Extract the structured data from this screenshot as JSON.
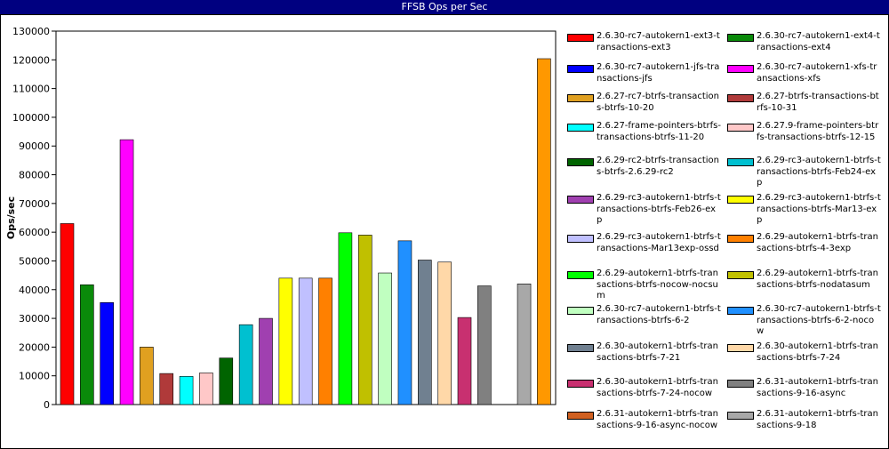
{
  "title": "FFSB Ops per Sec",
  "chart_data": {
    "type": "bar",
    "title": "FFSB Ops per Sec",
    "ylabel": "Ops/sec",
    "xlabel": "",
    "ylim": [
      0,
      130000
    ],
    "yticks": [
      "0",
      "10000",
      "20000",
      "30000",
      "40000",
      "50000",
      "60000",
      "70000",
      "80000",
      "90000",
      "100000",
      "110000",
      "120000",
      "130000"
    ],
    "grid": false,
    "legend_position": "right",
    "series": [
      {
        "name": "2.6.30-rc7-autokern1-ext3-transactions-ext3",
        "value": 63000,
        "color": "#ff0000"
      },
      {
        "name": "2.6.30-rc7-autokern1-ext4-transactions-ext4",
        "value": 41700,
        "color": "#0a8a0a"
      },
      {
        "name": "2.6.30-rc7-autokern1-jfs-transactions-jfs",
        "value": 35500,
        "color": "#0000ff"
      },
      {
        "name": "2.6.30-rc7-autokern1-xfs-transactions-xfs",
        "value": 92200,
        "color": "#ff00ff"
      },
      {
        "name": "2.6.27-rc7-btrfs-transactions-btrfs-10-20",
        "value": 20000,
        "color": "#e0a020"
      },
      {
        "name": "2.6.27-btrfs-transactions-btrfs-10-31",
        "value": 10800,
        "color": "#b03a3a"
      },
      {
        "name": "2.6.27-frame-pointers-btrfs-transactions-btrfs-11-20",
        "value": 9800,
        "color": "#00ffff"
      },
      {
        "name": "2.6.27.9-frame-pointers-btrfs-transactions-btrfs-12-15",
        "value": 11000,
        "color": "#ffc8c8"
      },
      {
        "name": "2.6.29-rc2-btrfs-transactions-btrfs-2.6.29-rc2",
        "value": 16200,
        "color": "#006400"
      },
      {
        "name": "2.6.29-rc3-autokern1-btrfs-transactions-btrfs-Feb24-exp",
        "value": 27800,
        "color": "#00c0d0"
      },
      {
        "name": "2.6.29-rc3-autokern1-btrfs-transactions-btrfs-Feb26-exp",
        "value": 30000,
        "color": "#a040b0"
      },
      {
        "name": "2.6.29-rc3-autokern1-btrfs-transactions-btrfs-Mar13-exp",
        "value": 44000,
        "color": "#ffff00"
      },
      {
        "name": "2.6.29-rc3-autokern1-btrfs-transactions-Mar13exp-ossd",
        "value": 44000,
        "color": "#c0c0ff"
      },
      {
        "name": "2.6.29-autokern1-btrfs-transactions-btrfs-4-3exp",
        "value": 44000,
        "color": "#ff8000"
      },
      {
        "name": "2.6.29-autokern1-btrfs-transactions-btrfs-nocow-nocsum",
        "value": 59800,
        "color": "#00ff00"
      },
      {
        "name": "2.6.29-autokern1-btrfs-transactions-btrfs-nodatasum",
        "value": 59000,
        "color": "#c0c000"
      },
      {
        "name": "2.6.30-rc7-autokern1-btrfs-transactions-btrfs-6-2",
        "value": 45800,
        "color": "#c0ffc0"
      },
      {
        "name": "2.6.30-rc7-autokern1-btrfs-transactions-btrfs-6-2-nocow",
        "value": 57000,
        "color": "#2090ff"
      },
      {
        "name": "2.6.30-autokern1-btrfs-transactions-btrfs-7-21",
        "value": 50300,
        "color": "#708090"
      },
      {
        "name": "2.6.30-autokern1-btrfs-transactions-btrfs-7-24",
        "value": 49600,
        "color": "#ffd8a8"
      },
      {
        "name": "2.6.30-autokern1-btrfs-transactions-btrfs-7-24-nocow",
        "value": 30300,
        "color": "#c83070"
      },
      {
        "name": "2.6.31-autokern1-btrfs-transactions-9-16-async",
        "value": 41300,
        "color": "#808080"
      },
      {
        "name": "2.6.31-autokern1-btrfs-transactions-9-16-async-nocow",
        "value": 0,
        "color": "#d06020"
      },
      {
        "name": "2.6.31-autokern1-btrfs-transactions-9-18",
        "value": 42000,
        "color": "#a8a8a8"
      },
      {
        "name": "",
        "value": 120400,
        "color": "#ff9800"
      }
    ]
  },
  "legend_text": [
    "2.6.30-rc7-autokern1-ext3-transactions-ext3",
    "2.6.30-rc7-autokern1-ext4-transactions-ext4",
    "2.6.30-rc7-autokern1-jfs-transactions-jfs",
    "2.6.30-rc7-autokern1-xfs-transactions-xfs",
    "2.6.27-rc7-btrfs-transactions-btrfs-10-20",
    "2.6.27-btrfs-transactions-btrfs-10-31",
    "2.6.27-frame-pointers-btrfs-transactions-btrfs-11-20",
    "2.6.27.9-frame-pointers-btrfs-transactions-btrfs-12-15",
    "2.6.29-rc2-btrfs-transactions-btrfs-2.6.29-rc2",
    "2.6.29-rc3-autokern1-btrfs-transactions-btrfs-Feb24-exp",
    "2.6.29-rc3-autokern1-btrfs-transactions-btrfs-Feb26-exp",
    "2.6.29-rc3-autokern1-btrfs-transactions-btrfs-Mar13-exp",
    "2.6.29-rc3-autokern1-btrfs-transactions-Mar13exp-ossd",
    "2.6.29-autokern1-btrfs-transactions-btrfs-4-3exp",
    "2.6.29-autokern1-btrfs-transactions-btrfs-nocow-nocsum",
    "2.6.29-autokern1-btrfs-transactions-btrfs-nodatasum",
    "2.6.30-rc7-autokern1-btrfs-transactions-btrfs-6-2",
    "2.6.30-rc7-autokern1-btrfs-transactions-btrfs-6-2-nocow",
    "2.6.30-autokern1-btrfs-transactions-btrfs-7-21",
    "2.6.30-autokern1-btrfs-transactions-btrfs-7-24",
    "2.6.30-autokern1-btrfs-transactions-btrfs-7-24-nocow",
    "2.6.31-autokern1-btrfs-transactions-9-16-async",
    "2.6.31-autokern1-btrfs-transactions-9-16-async-nocow",
    "2.6.31-autokern1-btrfs-transactions-9-18"
  ]
}
